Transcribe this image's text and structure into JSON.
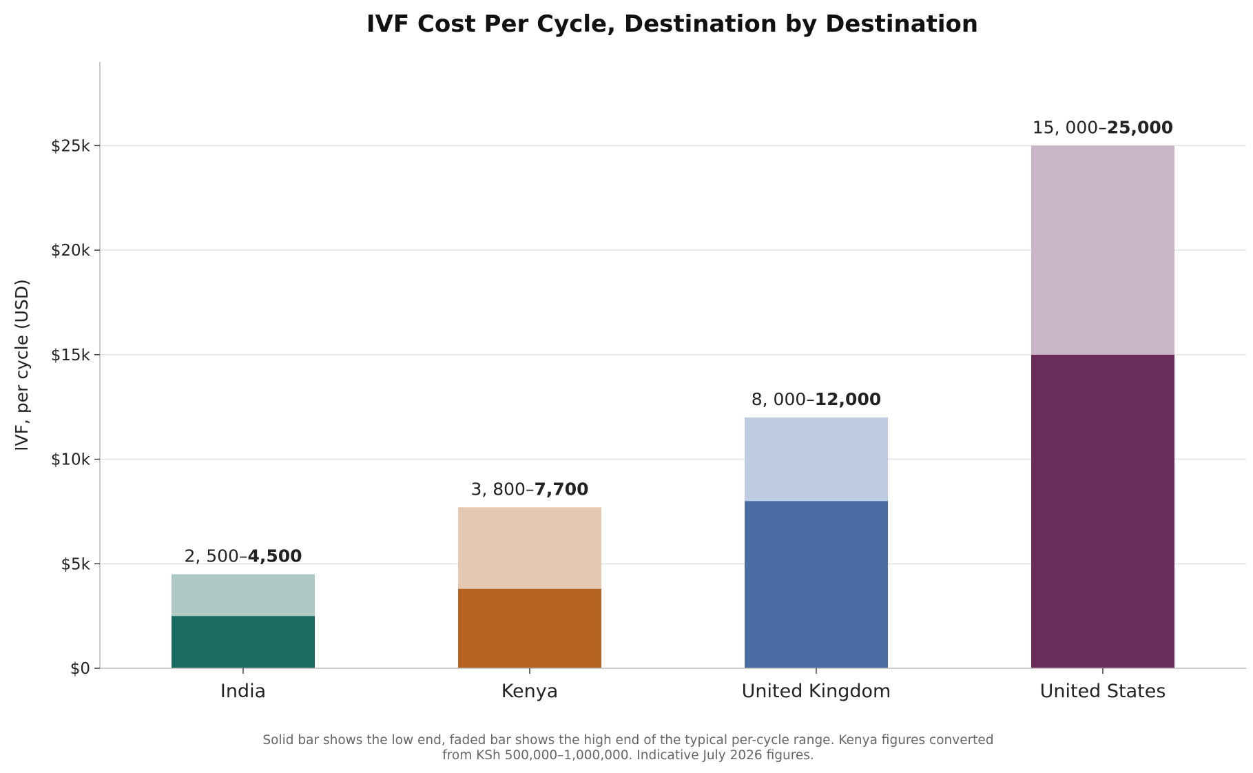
{
  "chart_data": {
    "type": "bar",
    "title": "IVF Cost Per Cycle, Destination by Destination",
    "ylabel": "IVF, per cycle (USD)",
    "xlabel": "",
    "ylim": [
      0,
      29000
    ],
    "yticks": [
      0,
      5000,
      10000,
      15000,
      20000,
      25000
    ],
    "ytick_labels": [
      "$0",
      "$5k",
      "$10k",
      "$15k",
      "$20k",
      "$25k"
    ],
    "grid": "horizontal",
    "categories": [
      "India",
      "Kenya",
      "United Kingdom",
      "United States"
    ],
    "series": [
      {
        "values": [
          2500,
          3800,
          8000,
          15000
        ]
      },
      {
        "values": [
          4500,
          7700,
          12000,
          25000
        ]
      }
    ],
    "data_labels": [
      {
        "low": "2, 500–",
        "high": "4,500"
      },
      {
        "low": "3, 800–",
        "high": "7,700"
      },
      {
        "low": "8, 000–",
        "high": "12,000"
      },
      {
        "low": "15, 000–",
        "high": "25,000"
      }
    ],
    "colors": {
      "solid": [
        "#1b6b60",
        "#b3631f",
        "#4a6ea3",
        "#6a2d5a"
      ],
      "faded": [
        "#afc9c5",
        "#e5c9b0",
        "#bfcbe0",
        "#cab4c7"
      ]
    },
    "footnote": [
      "Solid bar shows the low end, faded bar shows the high end of the typical per-cycle range. Kenya figures converted",
      "from KSh 500,000–1,000,000. Indicative July 2026 figures."
    ]
  }
}
